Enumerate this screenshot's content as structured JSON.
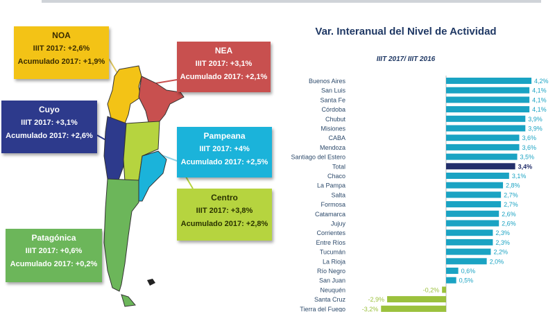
{
  "regions": [
    {
      "name": "NOA",
      "iiit": "IIIT 2017: +2,6%",
      "acum": "Acumulado 2017: +1,9%",
      "color": "#f3c316",
      "text": "#3a2c00"
    },
    {
      "name": "NEA",
      "iiit": "IIIT 2017: +3,1%",
      "acum": "Acumulado 2017: +2,1%",
      "color": "#c8504f",
      "text": "#ffffff"
    },
    {
      "name": "Cuyo",
      "iiit": "IIIT 2017: +3,1%",
      "acum": "Acumulado 2017: +2,6%",
      "color": "#2d3a8c",
      "text": "#ffffff"
    },
    {
      "name": "Pampeana",
      "iiit": "IIIT 2017: +4%",
      "acum": "Acumulado 2017: +2,5%",
      "color": "#1bb3da",
      "text": "#ffffff"
    },
    {
      "name": "Centro",
      "iiit": "IIIT 2017: +3,8%",
      "acum": "Acumulado 2017: +2,8%",
      "color": "#b6d43f",
      "text": "#2a3300"
    },
    {
      "name": "Patagónica",
      "iiit": "IIIT 2017: +0,6%",
      "acum": "Acumulado 2017: +0,2%",
      "color": "#6cb65a",
      "text": "#ffffff"
    }
  ],
  "chart_data": {
    "type": "bar",
    "orientation": "horizontal",
    "title": "Var. Interanual del Nivel de Actividad",
    "subtitle": "IIIT 2017/ IIIT 2016",
    "categories": [
      "Buenos Aires",
      "San Luis",
      "Santa Fe",
      "Córdoba",
      "Chubut",
      "Misiones",
      "CABA",
      "Mendoza",
      "Santiago del Estero",
      "Total",
      "Chaco",
      "La Pampa",
      "Salta",
      "Formosa",
      "Catamarca",
      "Jujuy",
      "Corrientes",
      "Entre Ríos",
      "Tucumán",
      "La Rioja",
      "Río Negro",
      "San Juan",
      "Neuquén",
      "Santa Cruz",
      "Tierra del Fuego"
    ],
    "values": [
      4.2,
      4.1,
      4.1,
      4.1,
      3.9,
      3.9,
      3.6,
      3.6,
      3.5,
      3.4,
      3.1,
      2.8,
      2.7,
      2.7,
      2.6,
      2.6,
      2.3,
      2.3,
      2.2,
      2.0,
      0.6,
      0.5,
      -0.2,
      -2.9,
      -3.2
    ],
    "value_labels": [
      "4,2%",
      "4,1%",
      "4,1%",
      "4,1%",
      "3,9%",
      "3,9%",
      "3,6%",
      "3,6%",
      "3,5%",
      "3,4%",
      "3,1%",
      "2,8%",
      "2,7%",
      "2,7%",
      "2,6%",
      "2,6%",
      "2,3%",
      "2,3%",
      "2,2%",
      "2,0%",
      "0,6%",
      "0,5%",
      "-0,2%",
      "-2,9%",
      "-3,2%"
    ],
    "colors": {
      "positive": "#1aa3c3",
      "total": "#232f6b",
      "negative": "#9bc13c"
    },
    "xlim": [
      -3.2,
      4.2
    ],
    "grid": false,
    "legend": "none"
  }
}
